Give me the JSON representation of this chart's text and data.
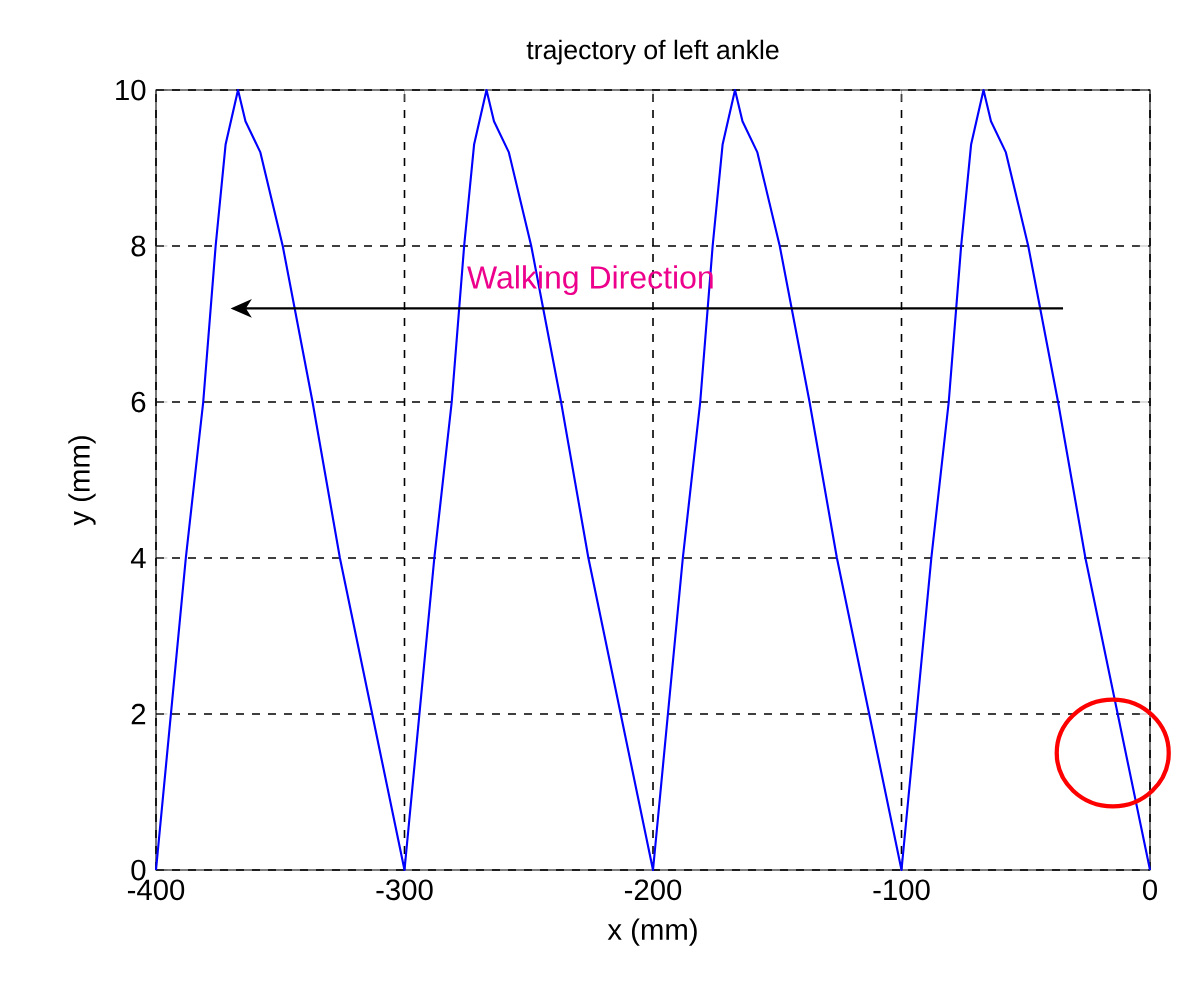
{
  "chart_data": {
    "type": "line",
    "title": "trajectory of left ankle",
    "xlabel": "x (mm)",
    "ylabel": "y (mm)",
    "annotations": [
      "Walking Direction"
    ],
    "series": [
      {
        "color": "#0000ff",
        "x": [
          -400,
          -394,
          -388,
          -381,
          -376,
          -372,
          -367,
          -364,
          -358,
          -349,
          -337,
          -326,
          -313,
          -300,
          -294,
          -288,
          -281,
          -276,
          -272,
          -267,
          -264,
          -258,
          -249,
          -237,
          -226,
          -213,
          -200,
          -194,
          -188,
          -181,
          -176,
          -172,
          -167,
          -164,
          -158,
          -149,
          -137,
          -126,
          -113,
          -100,
          -94,
          -88,
          -81,
          -76,
          -72,
          -67,
          -64,
          -58,
          -49,
          -37,
          -26,
          -13,
          0
        ],
        "values": [
          0,
          2,
          4,
          6,
          8,
          9.3,
          10,
          9.6,
          9.2,
          8,
          6,
          4,
          2,
          0,
          2,
          4,
          6,
          8,
          9.3,
          10,
          9.6,
          9.2,
          8,
          6,
          4,
          2,
          0,
          2,
          4,
          6,
          8,
          9.3,
          10,
          9.6,
          9.2,
          8,
          6,
          4,
          2,
          0,
          2,
          4,
          6,
          8,
          9.3,
          10,
          9.6,
          9.2,
          8,
          6,
          4,
          2,
          0
        ]
      }
    ],
    "xlim": [
      -400,
      0
    ],
    "ylim": [
      0,
      10
    ],
    "xticks": [
      -400,
      -300,
      -200,
      -100,
      0
    ],
    "yticks": [
      0,
      2,
      4,
      6,
      8,
      10
    ],
    "grid": true,
    "marker": "none",
    "line_style": "solid"
  }
}
